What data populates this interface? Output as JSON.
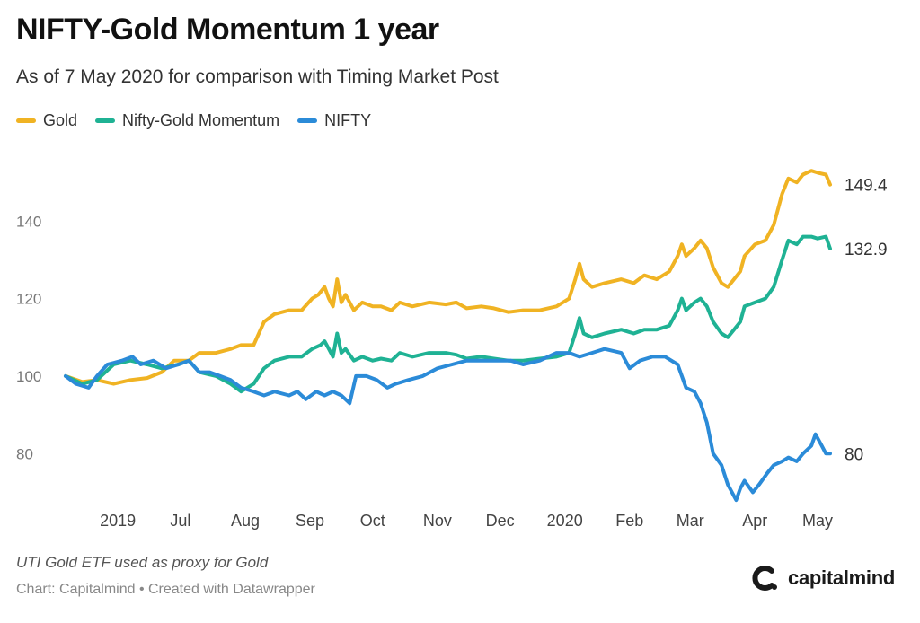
{
  "title": "NIFTY-Gold Momentum 1 year",
  "subtitle": "As of 7 May 2020 for comparison with Timing Market Post",
  "note": "UTI Gold ETF used as proxy for Gold",
  "credit": "Chart: Capitalmind • Created with Datawrapper",
  "logo_text": "capitalmind",
  "colors": {
    "gold": "#f0b323",
    "momentum": "#1fb294",
    "nifty": "#2b8bd8",
    "axis": "#777777"
  },
  "chart_data": {
    "type": "line",
    "x_range": [
      "2019-05-07",
      "2020-05-07"
    ],
    "ylim": [
      65,
      160
    ],
    "y_ticks": [
      80,
      100,
      120,
      140
    ],
    "x_ticks": [
      {
        "label": "2019",
        "date": "2019-06-01"
      },
      {
        "label": "Jul",
        "date": "2019-07-01"
      },
      {
        "label": "Aug",
        "date": "2019-08-01"
      },
      {
        "label": "Sep",
        "date": "2019-09-01"
      },
      {
        "label": "Oct",
        "date": "2019-10-01"
      },
      {
        "label": "Nov",
        "date": "2019-11-01"
      },
      {
        "label": "Dec",
        "date": "2019-12-01"
      },
      {
        "label": "2020",
        "date": "2020-01-01"
      },
      {
        "label": "Feb",
        "date": "2020-02-01"
      },
      {
        "label": "Mar",
        "date": "2020-03-01"
      },
      {
        "label": "Apr",
        "date": "2020-04-01"
      },
      {
        "label": "May",
        "date": "2020-05-01"
      }
    ],
    "legend_position": "top-left",
    "series": [
      {
        "name": "Gold",
        "key": "gold",
        "end_label": "149.4",
        "points": [
          [
            "2019-05-07",
            100
          ],
          [
            "2019-05-15",
            98.5
          ],
          [
            "2019-05-22",
            99
          ],
          [
            "2019-05-30",
            98
          ],
          [
            "2019-06-07",
            99
          ],
          [
            "2019-06-15",
            99.5
          ],
          [
            "2019-06-22",
            101
          ],
          [
            "2019-06-28",
            104
          ],
          [
            "2019-07-05",
            104
          ],
          [
            "2019-07-10",
            106
          ],
          [
            "2019-07-18",
            106
          ],
          [
            "2019-07-25",
            107
          ],
          [
            "2019-07-30",
            108
          ],
          [
            "2019-08-05",
            108
          ],
          [
            "2019-08-10",
            114
          ],
          [
            "2019-08-15",
            116
          ],
          [
            "2019-08-22",
            117
          ],
          [
            "2019-08-28",
            117
          ],
          [
            "2019-09-02",
            120
          ],
          [
            "2019-09-05",
            121
          ],
          [
            "2019-09-08",
            123
          ],
          [
            "2019-09-10",
            120
          ],
          [
            "2019-09-12",
            118
          ],
          [
            "2019-09-14",
            125
          ],
          [
            "2019-09-16",
            119
          ],
          [
            "2019-09-18",
            121
          ],
          [
            "2019-09-22",
            117
          ],
          [
            "2019-09-26",
            119
          ],
          [
            "2019-10-01",
            118
          ],
          [
            "2019-10-05",
            118
          ],
          [
            "2019-10-10",
            117
          ],
          [
            "2019-10-14",
            119
          ],
          [
            "2019-10-20",
            118
          ],
          [
            "2019-10-28",
            119
          ],
          [
            "2019-11-05",
            118.5
          ],
          [
            "2019-11-10",
            119
          ],
          [
            "2019-11-15",
            117.5
          ],
          [
            "2019-11-22",
            118
          ],
          [
            "2019-11-28",
            117.5
          ],
          [
            "2019-12-05",
            116.5
          ],
          [
            "2019-12-12",
            117
          ],
          [
            "2019-12-20",
            117
          ],
          [
            "2019-12-28",
            118
          ],
          [
            "2020-01-03",
            120
          ],
          [
            "2020-01-06",
            125
          ],
          [
            "2020-01-08",
            129
          ],
          [
            "2020-01-10",
            125
          ],
          [
            "2020-01-14",
            123
          ],
          [
            "2020-01-20",
            124
          ],
          [
            "2020-01-28",
            125
          ],
          [
            "2020-02-03",
            124
          ],
          [
            "2020-02-08",
            126
          ],
          [
            "2020-02-14",
            125
          ],
          [
            "2020-02-20",
            127
          ],
          [
            "2020-02-24",
            131
          ],
          [
            "2020-02-26",
            134
          ],
          [
            "2020-02-28",
            131
          ],
          [
            "2020-03-03",
            133
          ],
          [
            "2020-03-06",
            135
          ],
          [
            "2020-03-09",
            133
          ],
          [
            "2020-03-12",
            128
          ],
          [
            "2020-03-16",
            124
          ],
          [
            "2020-03-19",
            123
          ],
          [
            "2020-03-22",
            125
          ],
          [
            "2020-03-25",
            127
          ],
          [
            "2020-03-27",
            131
          ],
          [
            "2020-04-01",
            134
          ],
          [
            "2020-04-06",
            135
          ],
          [
            "2020-04-10",
            139
          ],
          [
            "2020-04-14",
            147
          ],
          [
            "2020-04-17",
            151
          ],
          [
            "2020-04-21",
            150
          ],
          [
            "2020-04-24",
            152
          ],
          [
            "2020-04-28",
            153
          ],
          [
            "2020-05-01",
            152.5
          ],
          [
            "2020-05-05",
            152
          ],
          [
            "2020-05-07",
            149.4
          ]
        ]
      },
      {
        "name": "Nifty-Gold Momentum",
        "key": "momentum",
        "end_label": "132.9",
        "points": [
          [
            "2019-05-07",
            100
          ],
          [
            "2019-05-15",
            98
          ],
          [
            "2019-05-22",
            99
          ],
          [
            "2019-05-30",
            103
          ],
          [
            "2019-06-07",
            104
          ],
          [
            "2019-06-15",
            103
          ],
          [
            "2019-06-22",
            102
          ],
          [
            "2019-06-30",
            103
          ],
          [
            "2019-07-05",
            104
          ],
          [
            "2019-07-10",
            101
          ],
          [
            "2019-07-18",
            100
          ],
          [
            "2019-07-25",
            98
          ],
          [
            "2019-07-30",
            96
          ],
          [
            "2019-08-05",
            98
          ],
          [
            "2019-08-10",
            102
          ],
          [
            "2019-08-15",
            104
          ],
          [
            "2019-08-22",
            105
          ],
          [
            "2019-08-28",
            105
          ],
          [
            "2019-09-02",
            107
          ],
          [
            "2019-09-06",
            108
          ],
          [
            "2019-09-08",
            109
          ],
          [
            "2019-09-10",
            107
          ],
          [
            "2019-09-12",
            105
          ],
          [
            "2019-09-14",
            111
          ],
          [
            "2019-09-16",
            106
          ],
          [
            "2019-09-18",
            107
          ],
          [
            "2019-09-22",
            104
          ],
          [
            "2019-09-26",
            105
          ],
          [
            "2019-10-01",
            104
          ],
          [
            "2019-10-05",
            104.5
          ],
          [
            "2019-10-10",
            104
          ],
          [
            "2019-10-14",
            106
          ],
          [
            "2019-10-20",
            105
          ],
          [
            "2019-10-28",
            106
          ],
          [
            "2019-11-05",
            106
          ],
          [
            "2019-11-10",
            105.5
          ],
          [
            "2019-11-15",
            104.5
          ],
          [
            "2019-11-22",
            105
          ],
          [
            "2019-11-28",
            104.5
          ],
          [
            "2019-12-05",
            104
          ],
          [
            "2019-12-12",
            104
          ],
          [
            "2019-12-20",
            104.5
          ],
          [
            "2019-12-28",
            105
          ],
          [
            "2020-01-03",
            106
          ],
          [
            "2020-01-06",
            111
          ],
          [
            "2020-01-08",
            115
          ],
          [
            "2020-01-10",
            111
          ],
          [
            "2020-01-14",
            110
          ],
          [
            "2020-01-20",
            111
          ],
          [
            "2020-01-28",
            112
          ],
          [
            "2020-02-03",
            111
          ],
          [
            "2020-02-08",
            112
          ],
          [
            "2020-02-14",
            112
          ],
          [
            "2020-02-20",
            113
          ],
          [
            "2020-02-24",
            117
          ],
          [
            "2020-02-26",
            120
          ],
          [
            "2020-02-28",
            117
          ],
          [
            "2020-03-03",
            119
          ],
          [
            "2020-03-06",
            120
          ],
          [
            "2020-03-09",
            118
          ],
          [
            "2020-03-12",
            114
          ],
          [
            "2020-03-16",
            111
          ],
          [
            "2020-03-19",
            110
          ],
          [
            "2020-03-22",
            112
          ],
          [
            "2020-03-25",
            114
          ],
          [
            "2020-03-27",
            118
          ],
          [
            "2020-04-01",
            119
          ],
          [
            "2020-04-06",
            120
          ],
          [
            "2020-04-10",
            123
          ],
          [
            "2020-04-14",
            130
          ],
          [
            "2020-04-17",
            135
          ],
          [
            "2020-04-21",
            134
          ],
          [
            "2020-04-24",
            136
          ],
          [
            "2020-04-28",
            136
          ],
          [
            "2020-05-01",
            135.5
          ],
          [
            "2020-05-05",
            136
          ],
          [
            "2020-05-07",
            132.9
          ]
        ]
      },
      {
        "name": "NIFTY",
        "key": "nifty",
        "end_label": "80",
        "points": [
          [
            "2019-05-07",
            100
          ],
          [
            "2019-05-12",
            98
          ],
          [
            "2019-05-18",
            97
          ],
          [
            "2019-05-22",
            100
          ],
          [
            "2019-05-27",
            103
          ],
          [
            "2019-06-03",
            104
          ],
          [
            "2019-06-08",
            105
          ],
          [
            "2019-06-12",
            103
          ],
          [
            "2019-06-18",
            104
          ],
          [
            "2019-06-24",
            102
          ],
          [
            "2019-06-30",
            103
          ],
          [
            "2019-07-05",
            104
          ],
          [
            "2019-07-10",
            101
          ],
          [
            "2019-07-15",
            101
          ],
          [
            "2019-07-20",
            100
          ],
          [
            "2019-07-25",
            99
          ],
          [
            "2019-07-30",
            97
          ],
          [
            "2019-08-05",
            96
          ],
          [
            "2019-08-10",
            95
          ],
          [
            "2019-08-15",
            96
          ],
          [
            "2019-08-22",
            95
          ],
          [
            "2019-08-26",
            96
          ],
          [
            "2019-08-30",
            94
          ],
          [
            "2019-09-04",
            96
          ],
          [
            "2019-09-08",
            95
          ],
          [
            "2019-09-12",
            96
          ],
          [
            "2019-09-16",
            95
          ],
          [
            "2019-09-20",
            93
          ],
          [
            "2019-09-23",
            100
          ],
          [
            "2019-09-28",
            100
          ],
          [
            "2019-10-03",
            99
          ],
          [
            "2019-10-08",
            97
          ],
          [
            "2019-10-12",
            98
          ],
          [
            "2019-10-18",
            99
          ],
          [
            "2019-10-25",
            100
          ],
          [
            "2019-11-01",
            102
          ],
          [
            "2019-11-08",
            103
          ],
          [
            "2019-11-15",
            104
          ],
          [
            "2019-11-22",
            104
          ],
          [
            "2019-11-30",
            104
          ],
          [
            "2019-12-06",
            104
          ],
          [
            "2019-12-12",
            103
          ],
          [
            "2019-12-20",
            104
          ],
          [
            "2019-12-28",
            106
          ],
          [
            "2020-01-03",
            106
          ],
          [
            "2020-01-08",
            105
          ],
          [
            "2020-01-14",
            106
          ],
          [
            "2020-01-20",
            107
          ],
          [
            "2020-01-28",
            106
          ],
          [
            "2020-02-01",
            102
          ],
          [
            "2020-02-06",
            104
          ],
          [
            "2020-02-12",
            105
          ],
          [
            "2020-02-18",
            105
          ],
          [
            "2020-02-24",
            103
          ],
          [
            "2020-02-28",
            97
          ],
          [
            "2020-03-03",
            96
          ],
          [
            "2020-03-06",
            93
          ],
          [
            "2020-03-09",
            88
          ],
          [
            "2020-03-12",
            80
          ],
          [
            "2020-03-16",
            77
          ],
          [
            "2020-03-19",
            72
          ],
          [
            "2020-03-23",
            68
          ],
          [
            "2020-03-25",
            71
          ],
          [
            "2020-03-27",
            73
          ],
          [
            "2020-03-31",
            70
          ],
          [
            "2020-04-03",
            72
          ],
          [
            "2020-04-07",
            75
          ],
          [
            "2020-04-10",
            77
          ],
          [
            "2020-04-14",
            78
          ],
          [
            "2020-04-17",
            79
          ],
          [
            "2020-04-21",
            78
          ],
          [
            "2020-04-24",
            80
          ],
          [
            "2020-04-28",
            82
          ],
          [
            "2020-04-30",
            85
          ],
          [
            "2020-05-03",
            82
          ],
          [
            "2020-05-05",
            80
          ],
          [
            "2020-05-07",
            80
          ]
        ]
      }
    ]
  }
}
